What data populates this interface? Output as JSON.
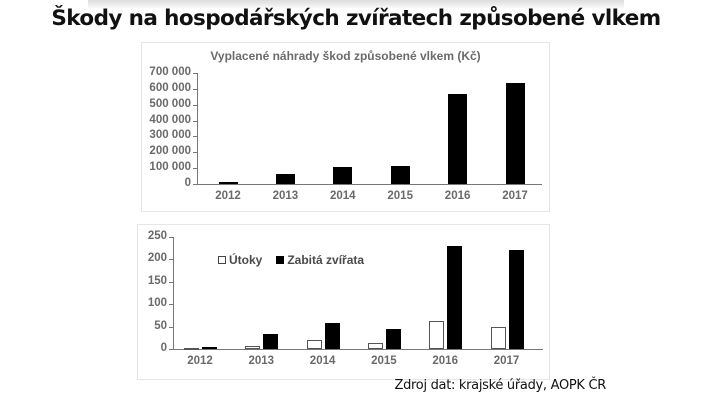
{
  "page": {
    "title": "Škody na hospodářských zvířatech způsobené vlkem",
    "source": "Zdroj dat: krajské úřady, AOPK ČR"
  },
  "colors": {
    "bar_primary": "#000000",
    "bar_secondary": "#ffffff",
    "axis_text": "#6a6a6a"
  },
  "chart_data": [
    {
      "type": "bar",
      "title": "Vyplacené náhrady škod způsobené vlkem (Kč)",
      "xlabel": "",
      "ylabel": "",
      "categories": [
        "2012",
        "2013",
        "2014",
        "2015",
        "2016",
        "2017"
      ],
      "values": [
        11000,
        66000,
        107000,
        116000,
        570000,
        637000
      ],
      "ylim": [
        0,
        700000
      ],
      "yticks": [
        "0",
        "100 000",
        "200 000",
        "300 000",
        "400 000",
        "500 000",
        "600 000",
        "700 000"
      ],
      "grid": false,
      "legend": null
    },
    {
      "type": "bar",
      "title": "",
      "xlabel": "",
      "ylabel": "",
      "categories": [
        "2012",
        "2013",
        "2014",
        "2015",
        "2016",
        "2017"
      ],
      "series": [
        {
          "name": "Útoky",
          "values": [
            3,
            7,
            20,
            13,
            63,
            50
          ]
        },
        {
          "name": "Zabitá zvířata",
          "values": [
            5,
            33,
            58,
            45,
            231,
            221
          ]
        }
      ],
      "ylim": [
        0,
        250
      ],
      "yticks": [
        "0",
        "50",
        "100",
        "150",
        "200",
        "250"
      ],
      "grid": false,
      "legend": {
        "position": "top-left inside",
        "entries": [
          "Útoky",
          "Zabitá zvířata"
        ]
      }
    }
  ]
}
